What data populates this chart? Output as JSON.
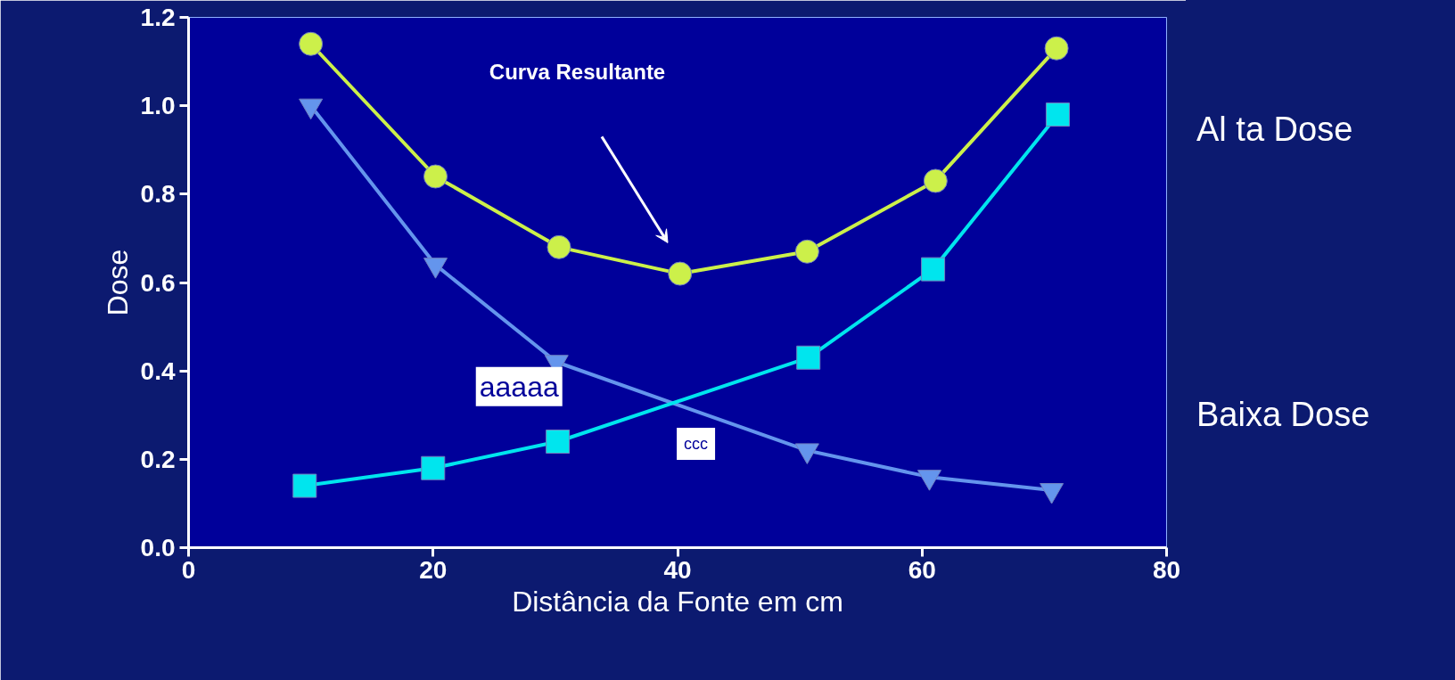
{
  "chart_data": {
    "type": "line",
    "xlabel": "Distância da Fonte em cm",
    "ylabel": "Dose",
    "xlim": [
      0,
      80
    ],
    "xticks": [
      0,
      20,
      40,
      60,
      80
    ],
    "ylim": [
      0,
      1.2
    ],
    "yticks": [
      {
        "value": 0,
        "label": "0.0"
      },
      0.2,
      0.4,
      0.6,
      0.8,
      {
        "value": 1,
        "label": "1.0"
      },
      1.2
    ],
    "grid": false,
    "line_style": "solid",
    "series": [
      {
        "color": "#ccf04a",
        "marker": "circle",
        "x": [
          10.0,
          20.2,
          30.3,
          40.2,
          50.6,
          61.1,
          71.0
        ],
        "values": [
          1.14,
          0.84,
          0.68,
          0.62,
          0.67,
          0.83,
          1.13
        ]
      },
      {
        "color": "#6495ed",
        "marker": "triangle",
        "x": [
          10.0,
          20.2,
          30.1,
          50.6,
          60.6,
          70.6
        ],
        "values": [
          1.0,
          0.64,
          0.42,
          0.22,
          0.16,
          0.13
        ]
      },
      {
        "color": "#00e5ee",
        "marker": "square",
        "x": [
          9.5,
          20.0,
          30.2,
          50.7,
          60.9,
          71.1
        ],
        "values": [
          0.14,
          0.18,
          0.24,
          0.43,
          0.63,
          0.98
        ]
      }
    ],
    "annotations": [
      "Curva Resultante",
      "Al ta Dose",
      "Baixa Dose",
      "aaaaa",
      "ccc"
    ]
  }
}
